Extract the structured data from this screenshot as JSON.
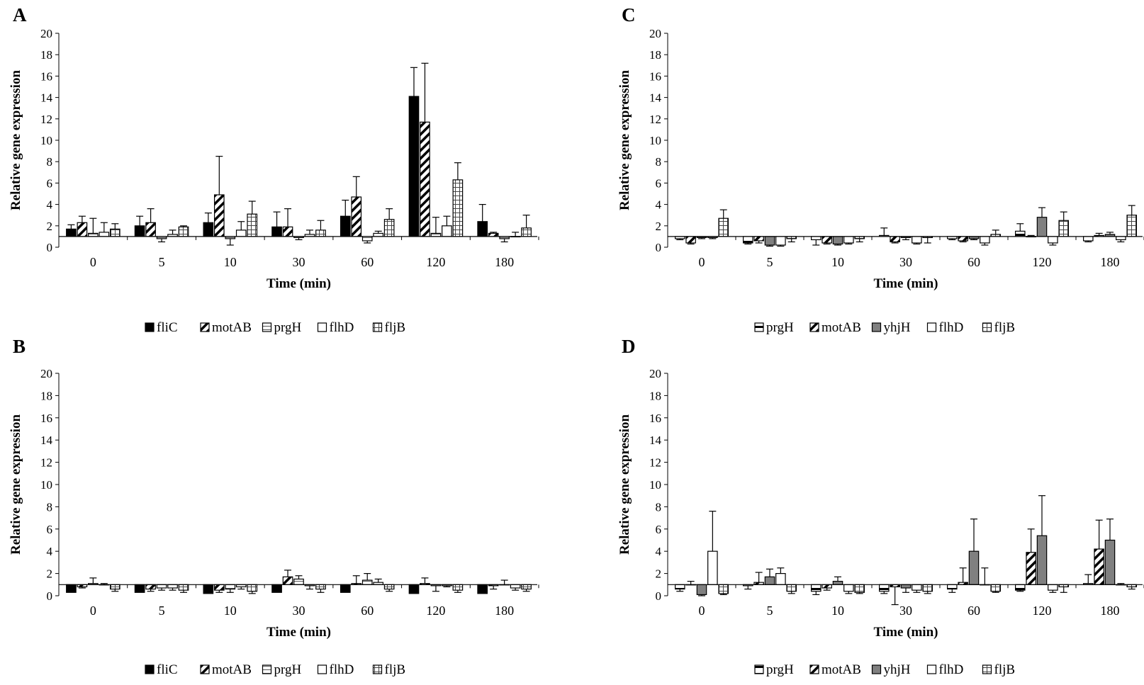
{
  "y_axis_label": "Relative gene expression",
  "x_axis_label": "Time (min)",
  "chart_data": [
    {
      "type": "bar",
      "panel": "A",
      "xlabel": "Time (min)",
      "ylabel": "Relative gene expression",
      "ylim": [
        0,
        20
      ],
      "yticks": [
        0,
        2,
        4,
        6,
        8,
        10,
        12,
        14,
        16,
        18,
        20
      ],
      "baseline": 1,
      "categories": [
        "0",
        "5",
        "10",
        "30",
        "60",
        "120",
        "180"
      ],
      "legend_position": "bottom-center",
      "series": [
        {
          "name": "fliC",
          "pattern": "solid-black",
          "values": [
            1.7,
            2.0,
            2.3,
            1.9,
            2.9,
            14.1,
            2.4
          ],
          "errors": [
            0.4,
            0.9,
            0.9,
            1.4,
            1.5,
            2.7,
            1.6
          ]
        },
        {
          "name": "motAB",
          "pattern": "diagonal-stripes",
          "values": [
            2.3,
            2.3,
            4.9,
            1.9,
            4.7,
            11.7,
            1.3
          ],
          "errors": [
            0.6,
            1.3,
            3.6,
            1.7,
            1.9,
            5.5,
            0.1
          ]
        },
        {
          "name": "prgH",
          "pattern": "horizontal-lines",
          "values": [
            1.3,
            0.8,
            0.8,
            0.9,
            0.6,
            1.3,
            0.8
          ],
          "errors": [
            1.4,
            0.3,
            0.6,
            0.2,
            0.2,
            1.5,
            0.3
          ]
        },
        {
          "name": "flhD",
          "pattern": "open",
          "values": [
            1.4,
            1.2,
            1.6,
            1.2,
            1.3,
            2.0,
            1.0
          ],
          "errors": [
            0.9,
            0.4,
            0.8,
            0.4,
            0.2,
            0.9,
            0.4
          ]
        },
        {
          "name": "fljB",
          "pattern": "grid",
          "values": [
            1.7,
            1.9,
            3.1,
            1.6,
            2.6,
            6.3,
            1.8
          ],
          "errors": [
            0.5,
            0.1,
            1.2,
            0.9,
            1.0,
            1.6,
            1.2
          ]
        }
      ]
    },
    {
      "type": "bar",
      "panel": "B",
      "xlabel": "Time (min)",
      "ylabel": "Relative gene expression",
      "ylim": [
        0,
        20
      ],
      "yticks": [
        0,
        2,
        4,
        6,
        8,
        10,
        12,
        14,
        16,
        18,
        20
      ],
      "baseline": 1,
      "categories": [
        "0",
        "5",
        "10",
        "30",
        "60",
        "120",
        "180"
      ],
      "legend_position": "bottom-center",
      "series": [
        {
          "name": "fliC",
          "pattern": "solid-black",
          "values": [
            0.3,
            0.3,
            0.2,
            0.3,
            0.3,
            0.2,
            0.2
          ],
          "errors": [
            0,
            0,
            0,
            0,
            0,
            0,
            0
          ]
        },
        {
          "name": "motAB",
          "pattern": "diagonal-stripes",
          "values": [
            0.8,
            0.6,
            0.5,
            1.7,
            1.1,
            1.1,
            0.9
          ],
          "errors": [
            0.1,
            0.2,
            0.2,
            0.6,
            0.7,
            0.5,
            0.3
          ]
        },
        {
          "name": "prgH",
          "pattern": "horizontal-lines",
          "values": [
            1.1,
            0.7,
            0.6,
            1.5,
            1.4,
            0.9,
            1.0
          ],
          "errors": [
            0.5,
            0.2,
            0.3,
            0.3,
            0.6,
            0.5,
            0.4
          ]
        },
        {
          "name": "flhD",
          "pattern": "open",
          "values": [
            1.0,
            0.7,
            0.8,
            0.9,
            1.2,
            0.9,
            0.7
          ],
          "errors": [
            0.1,
            0.2,
            0.2,
            0.3,
            0.3,
            0.1,
            0.2
          ]
        },
        {
          "name": "fljB",
          "pattern": "grid",
          "values": [
            0.6,
            0.5,
            0.4,
            0.6,
            0.6,
            0.5,
            0.6
          ],
          "errors": [
            0.2,
            0.2,
            0.2,
            0.3,
            0.2,
            0.2,
            0.2
          ]
        }
      ]
    },
    {
      "type": "bar",
      "panel": "C",
      "xlabel": "Time (min)",
      "ylabel": "Relative gene expression",
      "ylim": [
        0,
        20
      ],
      "yticks": [
        0,
        2,
        4,
        6,
        8,
        10,
        12,
        14,
        16,
        18,
        20
      ],
      "baseline": 1,
      "categories": [
        "0",
        "5",
        "10",
        "30",
        "60",
        "120",
        "180"
      ],
      "legend_position": "bottom-center",
      "series": [
        {
          "name": "prgH",
          "pattern": "half-filled",
          "values": [
            0.8,
            0.4,
            0.7,
            1.1,
            0.8,
            1.5,
            0.6
          ],
          "errors": [
            0.1,
            0.1,
            0.5,
            0.7,
            0.1,
            0.7,
            0.1
          ]
        },
        {
          "name": "motAB",
          "pattern": "bowtie",
          "values": [
            0.4,
            0.6,
            0.4,
            0.5,
            0.6,
            1.0,
            1.1
          ],
          "errors": [
            0.1,
            0.2,
            0.1,
            0.1,
            0.1,
            0.1,
            0.2
          ]
        },
        {
          "name": "yhjH",
          "pattern": "solid-gray",
          "values": [
            0.9,
            0.2,
            0.3,
            0.9,
            0.8,
            2.8,
            1.2
          ],
          "errors": [
            0.1,
            0.1,
            0.1,
            0.2,
            0.1,
            0.9,
            0.2
          ]
        },
        {
          "name": "flhD",
          "pattern": "open",
          "values": [
            0.9,
            0.2,
            0.4,
            0.4,
            0.4,
            0.4,
            0.7
          ],
          "errors": [
            0.1,
            0.1,
            0.1,
            0.1,
            0.2,
            0.2,
            0.2
          ]
        },
        {
          "name": "fljB",
          "pattern": "grid",
          "values": [
            2.7,
            0.8,
            0.8,
            0.9,
            1.2,
            2.5,
            3.0
          ],
          "errors": [
            0.8,
            0.3,
            0.3,
            0.5,
            0.4,
            0.8,
            0.9
          ]
        }
      ]
    },
    {
      "type": "bar",
      "panel": "D",
      "xlabel": "Time (min)",
      "ylabel": "Relative gene expression",
      "ylim": [
        0,
        20
      ],
      "yticks": [
        0,
        2,
        4,
        6,
        8,
        10,
        12,
        14,
        16,
        18,
        20
      ],
      "baseline": 1,
      "categories": [
        "0",
        "5",
        "10",
        "30",
        "60",
        "120",
        "180"
      ],
      "legend_position": "bottom-center",
      "series": [
        {
          "name": "prgH",
          "pattern": "half-filled",
          "values": [
            0.6,
            0.9,
            0.4,
            0.4,
            0.6,
            0.5,
            1.1
          ],
          "errors": [
            0.2,
            0.3,
            0.3,
            0.2,
            0.3,
            0.1,
            0.8
          ]
        },
        {
          "name": "motAB",
          "pattern": "diagonal-stripes",
          "values": [
            1.0,
            1.2,
            0.7,
            0.8,
            1.2,
            3.9,
            4.2
          ],
          "errors": [
            0.3,
            0.9,
            0.2,
            1.6,
            1.3,
            2.1,
            2.6
          ]
        },
        {
          "name": "yhjH",
          "pattern": "solid-gray",
          "values": [
            0.1,
            1.7,
            1.3,
            0.7,
            4.0,
            5.4,
            5.0
          ],
          "errors": [
            0.1,
            0.7,
            0.4,
            0.4,
            2.9,
            3.6,
            1.9
          ]
        },
        {
          "name": "flhD",
          "pattern": "open",
          "values": [
            4.0,
            2.0,
            0.4,
            0.5,
            1.0,
            0.5,
            1.0
          ],
          "errors": [
            3.6,
            0.5,
            0.2,
            0.2,
            1.5,
            0.2,
            0.1
          ]
        },
        {
          "name": "fljB",
          "pattern": "grid",
          "values": [
            0.2,
            0.4,
            0.3,
            0.4,
            0.4,
            0.8,
            0.8
          ],
          "errors": [
            0.1,
            0.2,
            0.1,
            0.2,
            0.1,
            0.5,
            0.2
          ]
        }
      ]
    }
  ]
}
